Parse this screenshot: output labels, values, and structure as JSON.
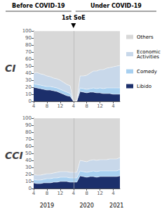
{
  "chart_data": [
    {
      "type": "area",
      "title": "CI",
      "categories": [
        "4",
        null,
        null,
        null,
        "8",
        null,
        null,
        null,
        "12",
        null,
        null,
        null,
        "4",
        null,
        null,
        null,
        "8",
        null,
        null,
        null,
        "12",
        null,
        null,
        null,
        "4",
        null,
        null
      ],
      "series": [
        {
          "name": "Libido",
          "color": "#1c2f6b",
          "values": [
            20,
            19,
            18,
            17,
            16,
            16,
            15,
            14,
            12,
            10,
            8,
            7,
            0,
            0,
            14,
            13,
            12,
            13,
            13,
            12,
            12,
            11,
            11,
            11,
            10,
            10,
            10
          ]
        },
        {
          "name": "Comedy",
          "color": "#a8d0f0",
          "values": [
            5,
            5,
            5,
            5,
            5,
            5,
            5,
            5,
            5,
            5,
            5,
            4,
            0,
            0,
            5,
            5,
            5,
            5,
            6,
            6,
            7,
            7,
            8,
            8,
            9,
            9,
            9
          ]
        },
        {
          "name": "Economic\nActivities",
          "color": "#c8d8ea",
          "values": [
            15,
            17,
            16,
            16,
            15,
            14,
            13,
            13,
            13,
            12,
            11,
            11,
            0,
            0,
            17,
            18,
            20,
            22,
            24,
            25,
            26,
            27,
            28,
            29,
            30,
            31,
            32
          ]
        },
        {
          "name": "Others",
          "color": "#d8d8d8",
          "values": [
            60,
            59,
            61,
            62,
            64,
            65,
            67,
            68,
            70,
            73,
            76,
            78,
            100,
            100,
            64,
            64,
            63,
            60,
            57,
            57,
            55,
            55,
            53,
            52,
            51,
            50,
            49
          ]
        }
      ],
      "ylim": [
        0,
        100
      ],
      "yticks": [
        0,
        10,
        20,
        30,
        40,
        50,
        60,
        70,
        80,
        90,
        100
      ],
      "stacked": true,
      "grid": false,
      "legend": "right",
      "annotations": [
        {
          "text": "Before COVID-19"
        },
        {
          "text": "Under COVID-19"
        },
        {
          "text": "1st SoE",
          "x": 12
        }
      ]
    },
    {
      "type": "area",
      "title": "CCI",
      "categories": [
        "4",
        null,
        null,
        null,
        "8",
        null,
        null,
        null,
        "12",
        null,
        null,
        null,
        "4",
        null,
        null,
        null,
        "8",
        null,
        null,
        null,
        "12",
        null,
        null,
        null,
        "4",
        null,
        null
      ],
      "series": [
        {
          "name": "Libido",
          "color": "#1c2f6b",
          "values": [
            8,
            7,
            7,
            8,
            8,
            8,
            9,
            9,
            10,
            10,
            10,
            9,
            9,
            9,
            18,
            17,
            16,
            17,
            17,
            16,
            17,
            17,
            17,
            17,
            17,
            17,
            18
          ]
        },
        {
          "name": "Comedy",
          "color": "#a8d0f0",
          "values": [
            5,
            5,
            5,
            5,
            6,
            6,
            6,
            6,
            6,
            6,
            6,
            6,
            6,
            6,
            7,
            7,
            7,
            7,
            8,
            8,
            8,
            8,
            8,
            8,
            8,
            8,
            9
          ]
        },
        {
          "name": "Economic\nActivities",
          "color": "#c8d8ea",
          "values": [
            7,
            7,
            7,
            7,
            7,
            7,
            7,
            8,
            8,
            8,
            8,
            8,
            8,
            8,
            15,
            15,
            15,
            16,
            16,
            16,
            16,
            16,
            16,
            17,
            17,
            17,
            17
          ]
        },
        {
          "name": "Others",
          "color": "#d8d8d8",
          "values": [
            80,
            81,
            81,
            80,
            79,
            79,
            78,
            77,
            76,
            76,
            76,
            77,
            77,
            77,
            60,
            61,
            62,
            60,
            59,
            60,
            59,
            59,
            59,
            58,
            58,
            58,
            56
          ]
        }
      ],
      "ylim": [
        0,
        100
      ],
      "yticks": [
        0,
        10,
        20,
        30,
        40,
        50,
        60,
        70,
        80,
        90,
        100
      ],
      "stacked": true,
      "grid": false,
      "annotations": [
        {
          "text": "2019",
          "x": 4
        },
        {
          "text": "2020",
          "x": 16
        },
        {
          "text": "2021",
          "x": 25
        }
      ]
    }
  ]
}
